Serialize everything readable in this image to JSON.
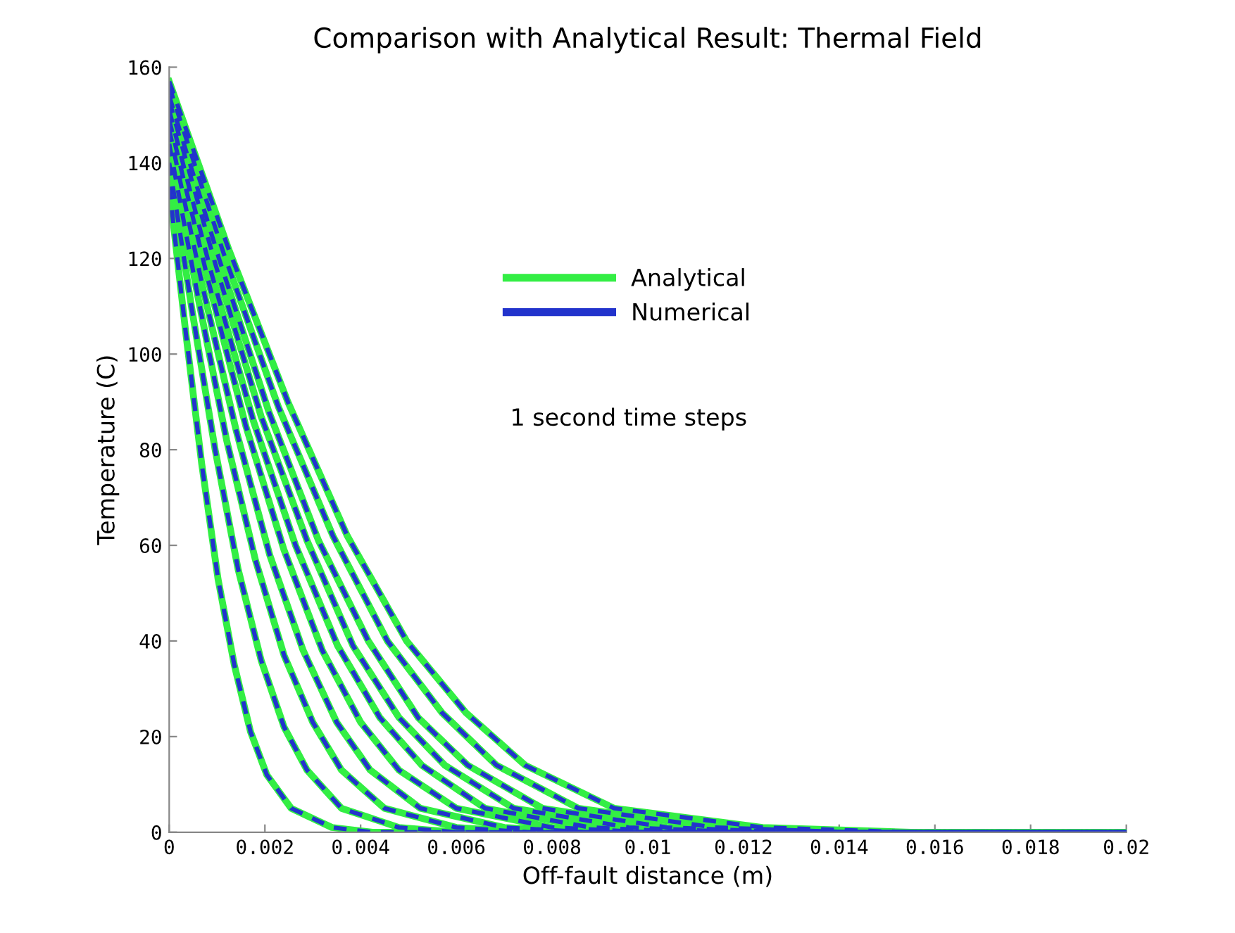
{
  "chart_data": {
    "type": "line",
    "title": "Comparison with Analytical Result: Thermal Field",
    "xlabel": "Off-fault distance (m)",
    "ylabel": "Temperature (C)",
    "xlim": [
      0,
      0.02
    ],
    "xticks": [
      0,
      0.002,
      0.004,
      0.006,
      0.008,
      0.01,
      0.012,
      0.014,
      0.016,
      0.018,
      0.02
    ],
    "ylim": [
      0,
      160
    ],
    "yticks": [
      0,
      20,
      40,
      60,
      80,
      100,
      120,
      140,
      160
    ],
    "grid": false,
    "legend": "top",
    "annotations": [
      "1 second time steps"
    ],
    "series": [
      {
        "name": "Analytical",
        "color": "#33ee44",
        "line_style": "solid",
        "x": [
          0,
          0.00034,
          0.00068,
          0.00102,
          0.00136,
          0.0017,
          0.00204,
          0.00255,
          0.0034,
          0.00425,
          0.02
        ],
        "values": [
          135,
          105,
          77,
          53,
          35,
          21,
          12,
          5,
          1,
          0,
          0
        ]
      },
      {
        "color": "#33ee44",
        "line_style": "solid",
        "x": [
          0,
          0.00048,
          0.00096,
          0.00144,
          0.00192,
          0.0024,
          0.00288,
          0.0036,
          0.0048,
          0.006,
          0.02
        ],
        "values": [
          140,
          109,
          80,
          55,
          36,
          22,
          13,
          5,
          1,
          0,
          0
        ]
      },
      {
        "color": "#33ee44",
        "line_style": "solid",
        "x": [
          0,
          0.0006,
          0.0012,
          0.0018,
          0.0024,
          0.003,
          0.0036,
          0.0045,
          0.006,
          0.0075,
          0.02
        ],
        "values": [
          144,
          112,
          82,
          57,
          37,
          23,
          13,
          5,
          1,
          0,
          0
        ]
      },
      {
        "color": "#33ee44",
        "line_style": "solid",
        "x": [
          0,
          0.0007,
          0.0014,
          0.0021,
          0.0028,
          0.0035,
          0.0042,
          0.00525,
          0.007,
          0.00875,
          0.02
        ],
        "values": [
          147,
          114,
          84,
          58,
          38,
          23,
          13,
          5,
          1,
          0,
          0
        ]
      },
      {
        "color": "#33ee44",
        "line_style": "solid",
        "x": [
          0,
          0.0008,
          0.0016,
          0.0024,
          0.0032,
          0.004,
          0.0048,
          0.006,
          0.008,
          0.01,
          0.02
        ],
        "values": [
          149,
          116,
          85,
          59,
          38,
          23,
          13,
          5,
          1,
          0,
          0
        ]
      },
      {
        "color": "#33ee44",
        "line_style": "solid",
        "x": [
          0,
          0.00088,
          0.00176,
          0.00264,
          0.00352,
          0.0044,
          0.00528,
          0.0066,
          0.0088,
          0.011,
          0.02
        ],
        "values": [
          151,
          117,
          86,
          60,
          39,
          24,
          14,
          5,
          1,
          0,
          0
        ]
      },
      {
        "color": "#33ee44",
        "line_style": "solid",
        "x": [
          0,
          0.00096,
          0.00192,
          0.00288,
          0.00384,
          0.0048,
          0.00576,
          0.0072,
          0.0096,
          0.012,
          0.02
        ],
        "values": [
          153,
          119,
          87,
          61,
          39,
          24,
          14,
          5,
          1,
          0,
          0
        ]
      },
      {
        "color": "#33ee44",
        "line_style": "solid",
        "x": [
          0,
          0.00104,
          0.00208,
          0.00312,
          0.00416,
          0.0052,
          0.00624,
          0.0078,
          0.0104,
          0.013,
          0.02
        ],
        "values": [
          154,
          120,
          88,
          61,
          40,
          24,
          14,
          5,
          1,
          0,
          0
        ]
      },
      {
        "color": "#33ee44",
        "line_style": "solid",
        "x": [
          0,
          0.00114,
          0.00228,
          0.00342,
          0.00456,
          0.0057,
          0.00684,
          0.00855,
          0.0114,
          0.01425,
          0.02
        ],
        "values": [
          156,
          121,
          89,
          62,
          40,
          25,
          14,
          5,
          1,
          0,
          0
        ]
      },
      {
        "color": "#33ee44",
        "line_style": "solid",
        "x": [
          0,
          0.00124,
          0.00248,
          0.00372,
          0.00496,
          0.0062,
          0.00744,
          0.0093,
          0.0124,
          0.0155,
          0.02
        ],
        "values": [
          157,
          122,
          90,
          62,
          40,
          25,
          14,
          5,
          1,
          0,
          0
        ]
      },
      {
        "name": "Numerical",
        "color": "#2233cc",
        "line_style": "dashed",
        "x": [
          0,
          0.00034,
          0.00068,
          0.00102,
          0.00136,
          0.0017,
          0.00204,
          0.00255,
          0.0034,
          0.00425,
          0.02
        ],
        "values": [
          135,
          105,
          77,
          53,
          35,
          21,
          12,
          5,
          1,
          0,
          0
        ]
      },
      {
        "color": "#2233cc",
        "line_style": "dashed",
        "x": [
          0,
          0.00048,
          0.00096,
          0.00144,
          0.00192,
          0.0024,
          0.00288,
          0.0036,
          0.0048,
          0.006,
          0.02
        ],
        "values": [
          140,
          109,
          80,
          55,
          36,
          22,
          13,
          5,
          1,
          0,
          0
        ]
      },
      {
        "color": "#2233cc",
        "line_style": "dashed",
        "x": [
          0,
          0.0006,
          0.0012,
          0.0018,
          0.0024,
          0.003,
          0.0036,
          0.0045,
          0.006,
          0.0075,
          0.02
        ],
        "values": [
          144,
          112,
          82,
          57,
          37,
          23,
          13,
          5,
          1,
          0,
          0
        ]
      },
      {
        "color": "#2233cc",
        "line_style": "dashed",
        "x": [
          0,
          0.0007,
          0.0014,
          0.0021,
          0.0028,
          0.0035,
          0.0042,
          0.00525,
          0.007,
          0.00875,
          0.02
        ],
        "values": [
          147,
          114,
          84,
          58,
          38,
          23,
          13,
          5,
          1,
          0,
          0
        ]
      },
      {
        "color": "#2233cc",
        "line_style": "dashed",
        "x": [
          0,
          0.0008,
          0.0016,
          0.0024,
          0.0032,
          0.004,
          0.0048,
          0.006,
          0.008,
          0.01,
          0.02
        ],
        "values": [
          149,
          116,
          85,
          59,
          38,
          23,
          13,
          5,
          1,
          0,
          0
        ]
      },
      {
        "color": "#2233cc",
        "line_style": "dashed",
        "x": [
          0,
          0.00088,
          0.00176,
          0.00264,
          0.00352,
          0.0044,
          0.00528,
          0.0066,
          0.0088,
          0.011,
          0.02
        ],
        "values": [
          151,
          117,
          86,
          60,
          39,
          24,
          14,
          5,
          1,
          0,
          0
        ]
      },
      {
        "color": "#2233cc",
        "line_style": "dashed",
        "x": [
          0,
          0.00096,
          0.00192,
          0.00288,
          0.00384,
          0.0048,
          0.00576,
          0.0072,
          0.0096,
          0.012,
          0.02
        ],
        "values": [
          153,
          119,
          87,
          61,
          39,
          24,
          14,
          5,
          1,
          0,
          0
        ]
      },
      {
        "color": "#2233cc",
        "line_style": "dashed",
        "x": [
          0,
          0.00104,
          0.00208,
          0.00312,
          0.00416,
          0.0052,
          0.00624,
          0.0078,
          0.0104,
          0.013,
          0.02
        ],
        "values": [
          154,
          120,
          88,
          61,
          40,
          24,
          14,
          5,
          1,
          0,
          0
        ]
      },
      {
        "color": "#2233cc",
        "line_style": "dashed",
        "x": [
          0,
          0.00114,
          0.00228,
          0.00342,
          0.00456,
          0.0057,
          0.00684,
          0.00855,
          0.0114,
          0.01425,
          0.02
        ],
        "values": [
          156,
          121,
          89,
          62,
          40,
          25,
          14,
          5,
          1,
          0,
          0
        ]
      },
      {
        "color": "#2233cc",
        "line_style": "dashed",
        "x": [
          0,
          0.00124,
          0.00248,
          0.00372,
          0.00496,
          0.0062,
          0.00744,
          0.0093,
          0.0124,
          0.0155,
          0.02
        ],
        "values": [
          157,
          122,
          90,
          62,
          40,
          25,
          14,
          5,
          1,
          0,
          0
        ]
      }
    ]
  }
}
